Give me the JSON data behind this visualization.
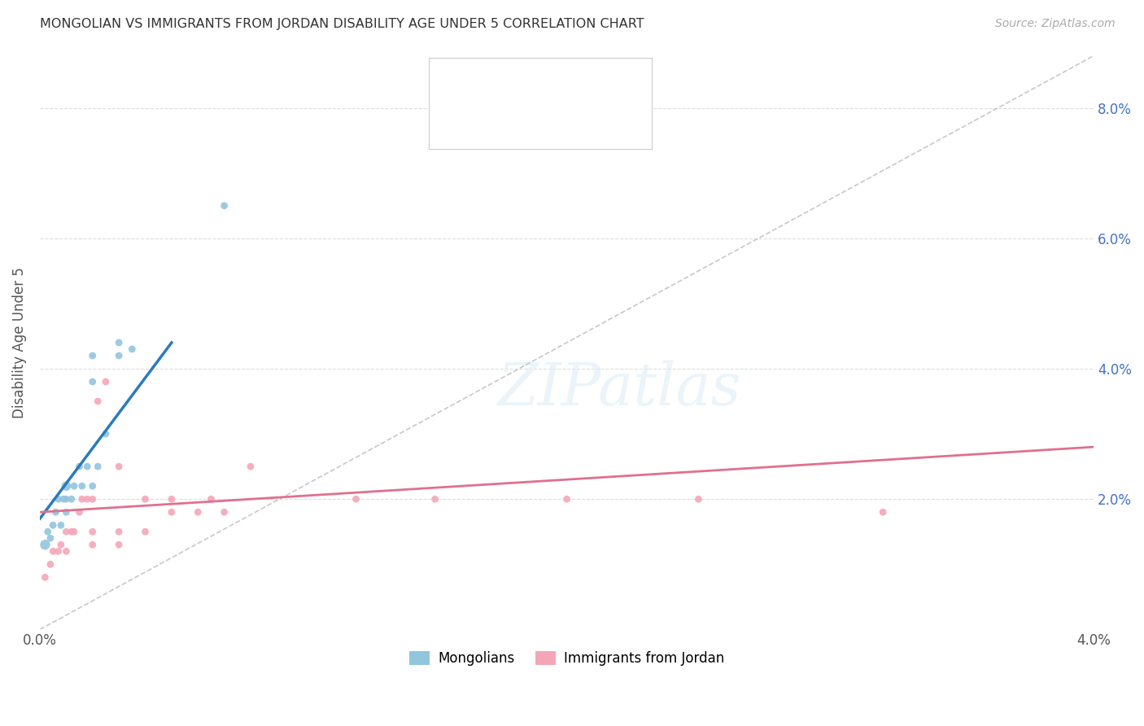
{
  "title": "MONGOLIAN VS IMMIGRANTS FROM JORDAN DISABILITY AGE UNDER 5 CORRELATION CHART",
  "source": "Source: ZipAtlas.com",
  "ylabel": "Disability Age Under 5",
  "xlabel_mongolians": "Mongolians",
  "xlabel_jordan": "Immigrants from Jordan",
  "xlim": [
    0.0,
    0.04
  ],
  "ylim": [
    0.0,
    0.088
  ],
  "yticks": [
    0.0,
    0.02,
    0.04,
    0.06,
    0.08
  ],
  "ytick_labels": [
    "",
    "2.0%",
    "4.0%",
    "6.0%",
    "8.0%"
  ],
  "xticks": [
    0.0,
    0.04
  ],
  "xtick_labels": [
    "0.0%",
    "4.0%"
  ],
  "mongolian_color": "#92c5de",
  "jordan_color": "#f4a6b8",
  "trend_mongolian_color": "#2b7bba",
  "trend_jordan_color": "#e07090",
  "diagonal_color": "#bbbbbb",
  "mongolians_x": [
    0.0002,
    0.0003,
    0.0004,
    0.0005,
    0.0006,
    0.0007,
    0.0008,
    0.0009,
    0.001,
    0.001,
    0.001,
    0.0012,
    0.0013,
    0.0015,
    0.0016,
    0.0018,
    0.002,
    0.002,
    0.002,
    0.0022,
    0.0025,
    0.003,
    0.003,
    0.0035,
    0.007
  ],
  "mongolians_y": [
    0.013,
    0.015,
    0.014,
    0.016,
    0.018,
    0.02,
    0.016,
    0.02,
    0.018,
    0.02,
    0.022,
    0.02,
    0.022,
    0.025,
    0.022,
    0.025,
    0.038,
    0.042,
    0.022,
    0.025,
    0.03,
    0.042,
    0.044,
    0.043,
    0.065
  ],
  "mongolians_size": [
    80,
    40,
    40,
    40,
    40,
    40,
    40,
    40,
    40,
    40,
    70,
    40,
    40,
    40,
    40,
    40,
    40,
    40,
    40,
    40,
    40,
    40,
    40,
    40,
    40
  ],
  "jordan_x": [
    0.0002,
    0.0004,
    0.0005,
    0.0007,
    0.0008,
    0.001,
    0.001,
    0.0012,
    0.0013,
    0.0015,
    0.0016,
    0.0018,
    0.002,
    0.002,
    0.002,
    0.0022,
    0.0025,
    0.003,
    0.003,
    0.003,
    0.004,
    0.004,
    0.005,
    0.005,
    0.006,
    0.0065,
    0.007,
    0.008,
    0.012,
    0.015,
    0.02,
    0.025,
    0.032
  ],
  "jordan_y": [
    0.008,
    0.01,
    0.012,
    0.012,
    0.013,
    0.012,
    0.015,
    0.015,
    0.015,
    0.018,
    0.02,
    0.02,
    0.013,
    0.015,
    0.02,
    0.035,
    0.038,
    0.013,
    0.015,
    0.025,
    0.015,
    0.02,
    0.018,
    0.02,
    0.018,
    0.02,
    0.018,
    0.025,
    0.02,
    0.02,
    0.02,
    0.02,
    0.018
  ],
  "jordan_size": [
    40,
    40,
    40,
    40,
    40,
    40,
    40,
    40,
    40,
    40,
    40,
    40,
    40,
    40,
    40,
    40,
    40,
    40,
    40,
    40,
    40,
    40,
    40,
    40,
    40,
    40,
    40,
    40,
    40,
    40,
    40,
    40,
    40
  ],
  "background_color": "#ffffff",
  "grid_color": "#dddddd",
  "trend_mon_x0": 0.0,
  "trend_mon_y0": 0.017,
  "trend_mon_x1": 0.005,
  "trend_mon_y1": 0.044,
  "trend_jor_x0": 0.0,
  "trend_jor_y0": 0.018,
  "trend_jor_x1": 0.04,
  "trend_jor_y1": 0.028
}
